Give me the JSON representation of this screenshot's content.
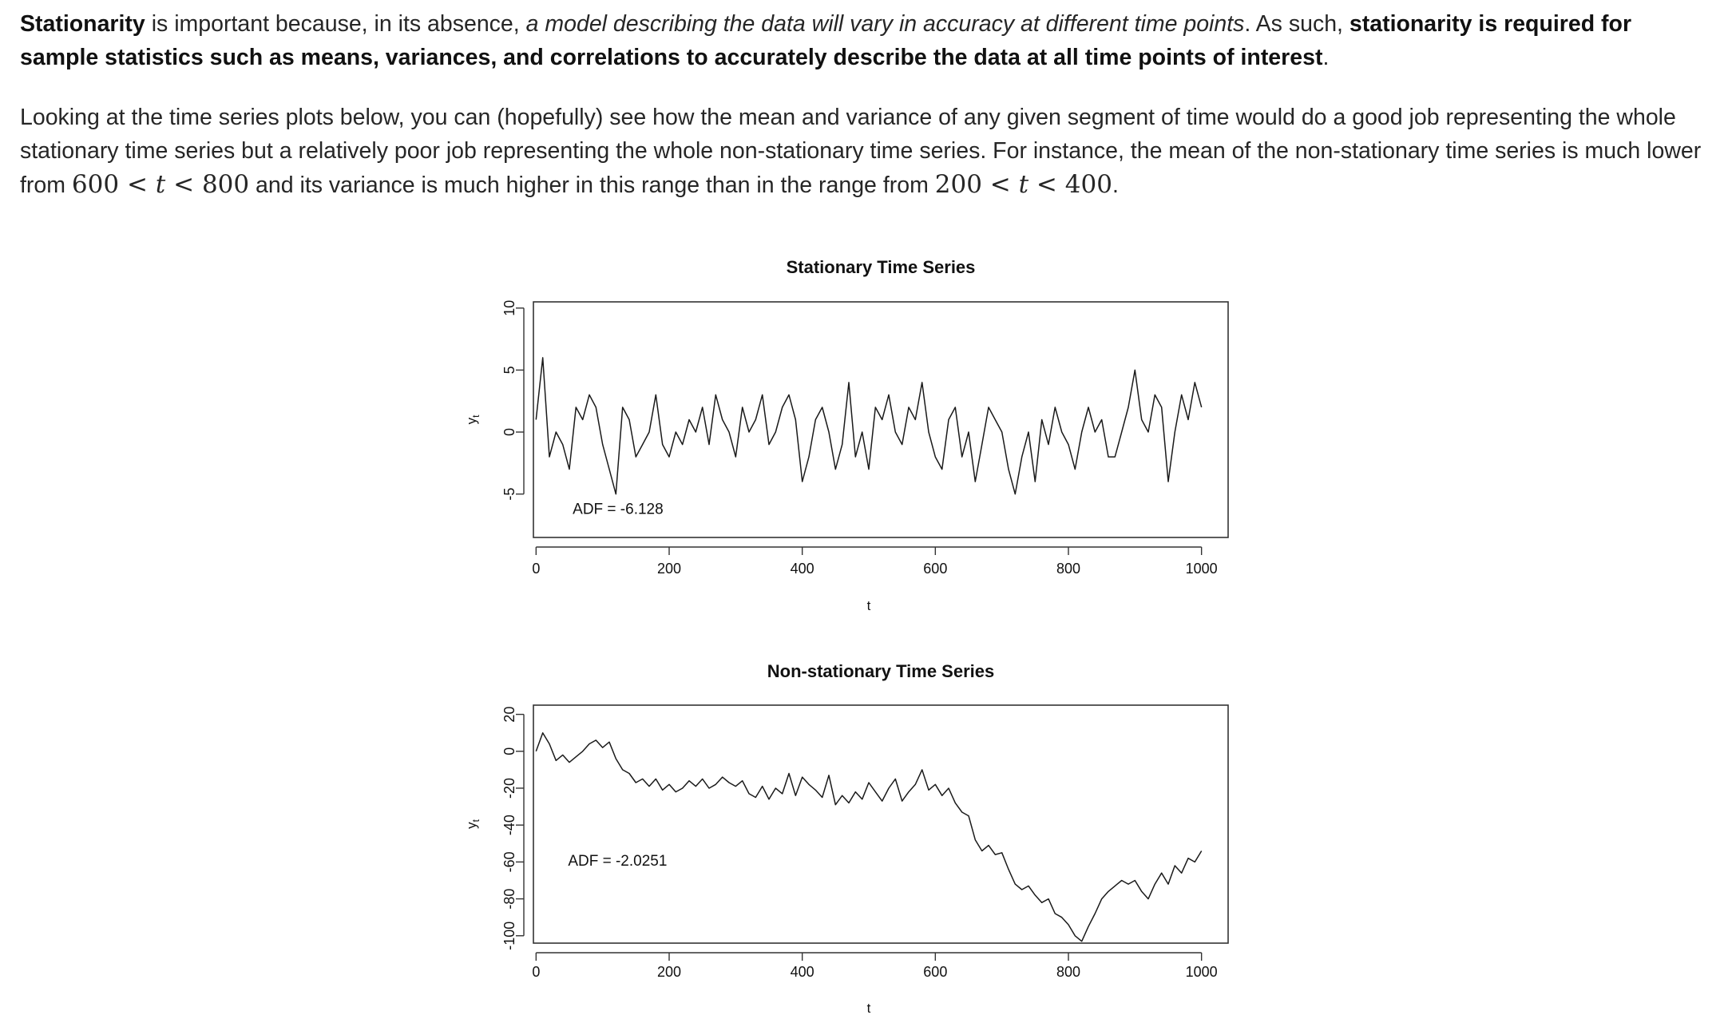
{
  "paragraph1": {
    "s1": "Stationarity",
    "s2": " is important because, in its absence, ",
    "s3": "a model describing the data will vary in accuracy at different time points",
    "s4": ". As such, ",
    "s5": "stationarity is required for sample statistics such as means, variances, and correlations to accurately describe the data at all time points of interest",
    "s6": "."
  },
  "paragraph2": {
    "s1": "Looking at the time series plots below, you can (hopefully) see how the mean and variance of any given segment of time would do a good job representing the whole stationary time series but a relatively poor job representing the whole non-stationary time series. For instance, the mean of the non-stationary time series is much lower from ",
    "m1": {
      "a": "600",
      "lt1": " < ",
      "t": "t",
      "lt2": " < ",
      "b": "800"
    },
    "s2": " and its variance is much higher in this range than in the range from ",
    "m2": {
      "a": "200",
      "lt1": " < ",
      "t": "t",
      "lt2": " < ",
      "b": "400"
    },
    "s3": "."
  },
  "chart_data": [
    {
      "type": "line",
      "title": "Stationary Time Series",
      "xlabel": "t",
      "ylabel": "y",
      "ylabel_sub": "t",
      "xlim": [
        -4,
        1040
      ],
      "ylim": [
        -8.5,
        10.5
      ],
      "x_ticks": [
        0,
        200,
        400,
        600,
        800,
        1000
      ],
      "y_ticks": [
        -5,
        0,
        5,
        10
      ],
      "annotation": "ADF = -6.128",
      "annotation_pos": {
        "t": 55,
        "y": -6.6
      },
      "line_color": "#1a1a1a",
      "series": [
        {
          "x": [
            0,
            10,
            20,
            30,
            40,
            50,
            60,
            70,
            80,
            90,
            100,
            110,
            120,
            130,
            140,
            150,
            160,
            170,
            180,
            190,
            200,
            210,
            220,
            230,
            240,
            250,
            260,
            270,
            280,
            290,
            300,
            310,
            320,
            330,
            340,
            350,
            360,
            370,
            380,
            390,
            400,
            410,
            420,
            430,
            440,
            450,
            460,
            470,
            480,
            490,
            500,
            510,
            520,
            530,
            540,
            550,
            560,
            570,
            580,
            590,
            600,
            610,
            620,
            630,
            640,
            650,
            660,
            670,
            680,
            690,
            700,
            710,
            720,
            730,
            740,
            750,
            760,
            770,
            780,
            790,
            800,
            810,
            820,
            830,
            840,
            850,
            860,
            870,
            880,
            890,
            900,
            910,
            920,
            930,
            940,
            950,
            960,
            970,
            980,
            990,
            1000
          ],
          "values": [
            1,
            6,
            -2,
            0,
            -1,
            -3,
            2,
            1,
            3,
            2,
            -1,
            -3,
            -5,
            2,
            1,
            -2,
            -1,
            0,
            3,
            -1,
            -2,
            0,
            -1,
            1,
            0,
            2,
            -1,
            3,
            1,
            0,
            -2,
            2,
            0,
            1,
            3,
            -1,
            0,
            2,
            3,
            1,
            -4,
            -2,
            1,
            2,
            0,
            -3,
            -1,
            4,
            -2,
            0,
            -3,
            2,
            1,
            3,
            0,
            -1,
            2,
            1,
            4,
            0,
            -2,
            -3,
            1,
            2,
            -2,
            0,
            -4,
            -1,
            2,
            1,
            0,
            -3,
            -5,
            -2,
            0,
            -4,
            1,
            -1,
            2,
            0,
            -1,
            -3,
            0,
            2,
            0,
            1,
            -2,
            -2,
            0,
            2,
            5,
            1,
            0,
            3,
            2,
            -4,
            0,
            3,
            1,
            4,
            2
          ]
        }
      ]
    },
    {
      "type": "line",
      "title": "Non-stationary Time Series",
      "xlabel": "t",
      "ylabel": "y",
      "ylabel_sub": "t",
      "xlim": [
        -4,
        1040
      ],
      "ylim": [
        -104,
        25
      ],
      "x_ticks": [
        0,
        200,
        400,
        600,
        800,
        1000
      ],
      "y_ticks": [
        -100,
        -80,
        -60,
        -40,
        -20,
        0,
        20
      ],
      "annotation": "ADF = -2.0251",
      "annotation_pos": {
        "t": 48,
        "y": -62
      },
      "line_color": "#1a1a1a",
      "series": [
        {
          "x": [
            0,
            10,
            20,
            30,
            40,
            50,
            60,
            70,
            80,
            90,
            100,
            110,
            120,
            130,
            140,
            150,
            160,
            170,
            180,
            190,
            200,
            210,
            220,
            230,
            240,
            250,
            260,
            270,
            280,
            290,
            300,
            310,
            320,
            330,
            340,
            350,
            360,
            370,
            380,
            390,
            400,
            410,
            420,
            430,
            440,
            450,
            460,
            470,
            480,
            490,
            500,
            510,
            520,
            530,
            540,
            550,
            560,
            570,
            580,
            590,
            600,
            610,
            620,
            630,
            640,
            650,
            660,
            670,
            680,
            690,
            700,
            710,
            720,
            730,
            740,
            750,
            760,
            770,
            780,
            790,
            800,
            810,
            820,
            830,
            840,
            850,
            860,
            870,
            880,
            890,
            900,
            910,
            920,
            930,
            940,
            950,
            960,
            970,
            980,
            990,
            1000
          ],
          "values": [
            0,
            10,
            4,
            -5,
            -2,
            -6,
            -3,
            0,
            4,
            6,
            2,
            5,
            -4,
            -10,
            -12,
            -17,
            -15,
            -19,
            -15,
            -21,
            -18,
            -22,
            -20,
            -16,
            -19,
            -15,
            -20,
            -18,
            -14,
            -17,
            -19,
            -16,
            -23,
            -25,
            -19,
            -26,
            -20,
            -23,
            -12,
            -24,
            -14,
            -18,
            -21,
            -25,
            -13,
            -29,
            -24,
            -28,
            -22,
            -26,
            -17,
            -22,
            -27,
            -20,
            -15,
            -27,
            -22,
            -18,
            -10,
            -21,
            -18,
            -24,
            -20,
            -28,
            -33,
            -35,
            -48,
            -54,
            -51,
            -56,
            -55,
            -64,
            -72,
            -75,
            -73,
            -78,
            -82,
            -80,
            -88,
            -90,
            -94,
            -100,
            -103,
            -95,
            -88,
            -80,
            -76,
            -73,
            -70,
            -72,
            -70,
            -76,
            -80,
            -72,
            -66,
            -72,
            -62,
            -66,
            -58,
            -60,
            -54
          ]
        }
      ]
    }
  ]
}
